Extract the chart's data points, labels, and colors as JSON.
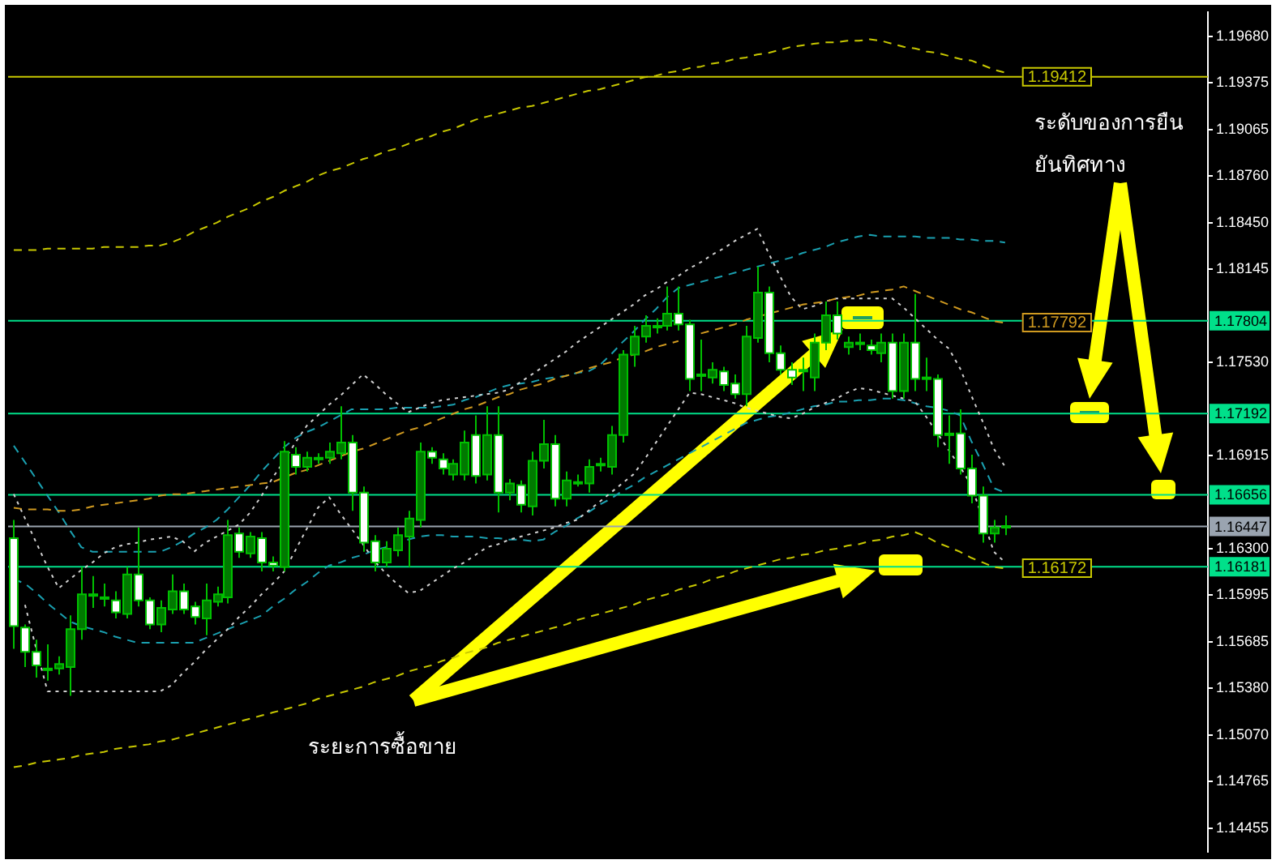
{
  "chart_data": {
    "type": "candlestick",
    "categories": [
      null,
      null,
      null,
      null,
      null,
      null,
      null,
      null,
      null,
      null,
      null,
      null,
      null,
      null,
      null,
      null,
      null,
      null,
      null,
      null,
      null,
      null,
      null,
      null,
      null,
      null,
      null,
      null,
      null,
      null,
      null,
      null,
      null,
      null,
      null,
      null,
      null,
      null,
      null,
      null,
      null,
      null,
      null,
      null,
      null,
      null,
      null,
      null,
      null,
      null,
      null,
      null,
      null,
      null,
      null,
      null,
      null,
      null,
      null,
      null,
      null,
      null,
      null,
      null,
      null,
      null,
      null,
      null,
      null,
      null,
      null,
      null,
      null,
      null,
      null,
      null,
      null,
      null,
      null,
      null,
      null,
      null,
      null,
      null,
      null,
      null,
      null,
      null,
      null
    ],
    "ohlc": [
      [
        1.1637,
        1.1649,
        1.1564,
        1.1579
      ],
      [
        1.1578,
        1.158,
        1.1552,
        1.1562
      ],
      [
        1.1562,
        1.157,
        1.1545,
        1.1553
      ],
      [
        1.1551,
        1.1567,
        1.1543,
        1.1551
      ],
      [
        1.1551,
        1.1559,
        1.1547,
        1.1554
      ],
      [
        1.1552,
        1.1586,
        1.1533,
        1.1577
      ],
      [
        1.1577,
        1.1618,
        1.157,
        1.16
      ],
      [
        1.16,
        1.1612,
        1.1591,
        1.16
      ],
      [
        1.1598,
        1.1607,
        1.1592,
        1.1597
      ],
      [
        1.1596,
        1.1602,
        1.1584,
        1.1588
      ],
      [
        1.1587,
        1.1618,
        1.1584,
        1.1613
      ],
      [
        1.1613,
        1.1644,
        1.1592,
        1.1596
      ],
      [
        1.1596,
        1.1598,
        1.1577,
        1.158
      ],
      [
        1.158,
        1.1596,
        1.1575,
        1.1591
      ],
      [
        1.159,
        1.1613,
        1.1587,
        1.1602
      ],
      [
        1.1602,
        1.1607,
        1.1587,
        1.159
      ],
      [
        1.1592,
        1.1595,
        1.158,
        1.1585
      ],
      [
        1.1584,
        1.1607,
        1.1573,
        1.1596
      ],
      [
        1.1595,
        1.1605,
        1.1592,
        1.16
      ],
      [
        1.1598,
        1.1649,
        1.1594,
        1.1639
      ],
      [
        1.164,
        1.1644,
        1.1624,
        1.1628
      ],
      [
        1.1627,
        1.1641,
        1.1624,
        1.1638
      ],
      [
        1.1637,
        1.1641,
        1.1615,
        1.1621
      ],
      [
        1.1621,
        1.1625,
        1.1615,
        1.1619
      ],
      [
        1.1618,
        1.1701,
        1.1615,
        1.1694
      ],
      [
        1.1692,
        1.1697,
        1.1679,
        1.1684
      ],
      [
        1.1684,
        1.1694,
        1.1681,
        1.169
      ],
      [
        1.169,
        1.1693,
        1.1686,
        1.169
      ],
      [
        1.169,
        1.17,
        1.1686,
        1.1694
      ],
      [
        1.1693,
        1.1724,
        1.1689,
        1.17
      ],
      [
        1.17,
        1.1705,
        1.1655,
        1.1667
      ],
      [
        1.1667,
        1.1671,
        1.1628,
        1.1634
      ],
      [
        1.1635,
        1.1639,
        1.1615,
        1.1621
      ],
      [
        1.1621,
        1.1635,
        1.1618,
        1.163
      ],
      [
        1.1629,
        1.1644,
        1.1625,
        1.1639
      ],
      [
        1.1638,
        1.1655,
        1.1618,
        1.165
      ],
      [
        1.1649,
        1.17,
        1.1644,
        1.1694
      ],
      [
        1.1694,
        1.1697,
        1.1686,
        1.169
      ],
      [
        1.1689,
        1.1693,
        1.1679,
        1.1683
      ],
      [
        1.1679,
        1.1689,
        1.1675,
        1.1686
      ],
      [
        1.1679,
        1.1708,
        1.1675,
        1.17
      ],
      [
        1.1705,
        1.1718,
        1.1673,
        1.1678
      ],
      [
        1.1679,
        1.1724,
        1.1675,
        1.1705
      ],
      [
        1.1705,
        1.1724,
        1.1654,
        1.1667
      ],
      [
        1.1667,
        1.1676,
        1.1662,
        1.1673
      ],
      [
        1.1672,
        1.1675,
        1.1654,
        1.1659
      ],
      [
        1.1658,
        1.1694,
        1.1652,
        1.1688
      ],
      [
        1.1688,
        1.1715,
        1.1683,
        1.1699
      ],
      [
        1.1699,
        1.1705,
        1.1658,
        1.1663
      ],
      [
        1.1663,
        1.1681,
        1.1658,
        1.1675
      ],
      [
        1.1674,
        1.1679,
        1.1671,
        1.1674
      ],
      [
        1.1673,
        1.1689,
        1.1667,
        1.1684
      ],
      [
        1.1686,
        1.169,
        1.1681,
        1.1686
      ],
      [
        1.1684,
        1.1711,
        1.1679,
        1.1705
      ],
      [
        1.1705,
        1.1761,
        1.17,
        1.1758
      ],
      [
        1.1758,
        1.1777,
        1.175,
        1.177
      ],
      [
        1.177,
        1.1784,
        1.1766,
        1.1777
      ],
      [
        1.1777,
        1.1782,
        1.1772,
        1.1777
      ],
      [
        1.1777,
        1.1803,
        1.1774,
        1.1785
      ],
      [
        1.1785,
        1.1803,
        1.1774,
        1.1778
      ],
      [
        1.1778,
        1.1781,
        1.1734,
        1.1742
      ],
      [
        1.1745,
        1.1768,
        1.1734,
        1.1745
      ],
      [
        1.1743,
        1.1753,
        1.1739,
        1.1748
      ],
      [
        1.1747,
        1.175,
        1.1734,
        1.1738
      ],
      [
        1.1739,
        1.1745,
        1.1729,
        1.1732
      ],
      [
        1.1732,
        1.1777,
        1.1724,
        1.177
      ],
      [
        1.1769,
        1.1816,
        1.1766,
        1.1799
      ],
      [
        1.1799,
        1.1803,
        1.1753,
        1.1759
      ],
      [
        1.1759,
        1.1764,
        1.1745,
        1.1748
      ],
      [
        1.1748,
        1.1753,
        1.1738,
        1.1743
      ],
      [
        1.1748,
        1.1756,
        1.1734,
        1.1748
      ],
      [
        1.1743,
        1.1772,
        1.1734,
        1.1766
      ],
      [
        1.1766,
        1.1793,
        1.1761,
        1.1784
      ],
      [
        1.1784,
        1.1793,
        1.1768,
        1.1772
      ],
      [
        1.1763,
        1.177,
        1.1758,
        1.1766
      ],
      [
        1.1766,
        1.1772,
        1.1761,
        1.1766
      ],
      [
        1.1764,
        1.1768,
        1.1758,
        1.1761
      ],
      [
        1.1759,
        1.1772,
        1.1753,
        1.1766
      ],
      [
        1.1766,
        1.1772,
        1.1729,
        1.1734
      ],
      [
        1.1734,
        1.1772,
        1.1729,
        1.1766
      ],
      [
        1.1766,
        1.1798,
        1.1734,
        1.1742
      ],
      [
        1.1743,
        1.1756,
        1.1734,
        1.1743
      ],
      [
        1.1742,
        1.1745,
        1.1697,
        1.1705
      ],
      [
        1.1706,
        1.1718,
        1.1686,
        1.1706
      ],
      [
        1.1706,
        1.1722,
        1.1679,
        1.1683
      ],
      [
        1.1683,
        1.1692,
        1.166,
        1.1665
      ],
      [
        1.1665,
        1.1671,
        1.1634,
        1.164
      ],
      [
        1.164,
        1.1649,
        1.1634,
        1.1644
      ],
      [
        1.1645,
        1.1652,
        1.1639,
        1.1645
      ]
    ],
    "series": [
      {
        "type": "line",
        "color": "#c8c800",
        "line_style": "dashed",
        "values": [
          1.1827,
          1.1827,
          1.1827,
          1.1828,
          1.1828,
          1.1828,
          1.1828,
          1.1828,
          1.1829,
          1.1829,
          1.1829,
          1.1829,
          1.183,
          1.183,
          1.1832,
          1.1835,
          1.1839,
          1.1842,
          1.1845,
          1.1849,
          1.1852,
          1.1855,
          1.1859,
          1.1862,
          1.1866,
          1.1869,
          1.1872,
          1.1876,
          1.1879,
          1.1881,
          1.1884,
          1.1887,
          1.1889,
          1.1892,
          1.1894,
          1.1897,
          1.19,
          1.1902,
          1.1905,
          1.1907,
          1.191,
          1.1913,
          1.1915,
          1.1917,
          1.1919,
          1.1921,
          1.1922,
          1.1924,
          1.1926,
          1.1928,
          1.193,
          1.1932,
          1.1933,
          1.1935,
          1.1937,
          1.1939,
          1.1941,
          1.1942,
          1.1944,
          1.1945,
          1.1947,
          1.1948,
          1.195,
          1.1951,
          1.1953,
          1.1954,
          1.1956,
          1.1957,
          1.1959,
          1.1961,
          1.1962,
          1.1963,
          1.1964,
          1.1964,
          1.1965,
          1.1965,
          1.1966,
          1.1965,
          1.1963,
          1.1961,
          1.196,
          1.1958,
          1.1957,
          1.1955,
          1.1953,
          1.1952,
          1.1949,
          1.1946,
          1.1944
        ]
      },
      {
        "type": "line",
        "color": "#c8c800",
        "line_style": "dashed",
        "values": [
          1.1486,
          1.1487,
          1.1489,
          1.149,
          1.1491,
          1.1492,
          1.1494,
          1.1495,
          1.1496,
          1.1498,
          1.1499,
          1.15,
          1.1501,
          1.1503,
          1.1504,
          1.1506,
          1.1508,
          1.151,
          1.1512,
          1.1514,
          1.1516,
          1.1518,
          1.152,
          1.1522,
          1.1524,
          1.1526,
          1.1528,
          1.1531,
          1.1533,
          1.1535,
          1.1537,
          1.1539,
          1.1542,
          1.1544,
          1.1546,
          1.1549,
          1.1551,
          1.1553,
          1.1556,
          1.1558,
          1.1561,
          1.1563,
          1.1565,
          1.1568,
          1.157,
          1.1572,
          1.1574,
          1.1576,
          1.1578,
          1.158,
          1.1583,
          1.1585,
          1.1587,
          1.1589,
          1.1591,
          1.1593,
          1.1596,
          1.1598,
          1.16,
          1.1603,
          1.1605,
          1.1607,
          1.161,
          1.1612,
          1.1615,
          1.1617,
          1.1619,
          1.1621,
          1.1623,
          1.1624,
          1.1626,
          1.1627,
          1.1629,
          1.163,
          1.1632,
          1.1633,
          1.1635,
          1.1636,
          1.1638,
          1.1639,
          1.1641,
          1.1638,
          1.1634,
          1.1631,
          1.1628,
          1.1624,
          1.1621,
          1.1618,
          1.1617
        ]
      },
      {
        "type": "line",
        "color": "#d09a20",
        "line_style": "dashed",
        "values": [
          1.1657,
          1.1656,
          1.1656,
          1.1656,
          1.1655,
          1.1655,
          1.1656,
          1.1658,
          1.1659,
          1.166,
          1.1661,
          1.1662,
          1.1663,
          1.1665,
          1.1666,
          1.1666,
          1.1667,
          1.1668,
          1.1669,
          1.167,
          1.1671,
          1.1672,
          1.1673,
          1.1674,
          1.1677,
          1.168,
          1.1682,
          1.1685,
          1.1688,
          1.1691,
          1.1694,
          1.1696,
          1.1699,
          1.1702,
          1.1705,
          1.1708,
          1.171,
          1.1713,
          1.1716,
          1.1719,
          1.1722,
          1.1724,
          1.1727,
          1.173,
          1.1732,
          1.1735,
          1.1737,
          1.1739,
          1.1742,
          1.1744,
          1.1746,
          1.1749,
          1.1751,
          1.1753,
          1.1756,
          1.1758,
          1.176,
          1.1763,
          1.1765,
          1.1767,
          null,
          1.1772,
          1.1774,
          1.1776,
          1.1778,
          1.1781,
          1.1783,
          1.1785,
          1.1787,
          1.1789,
          1.1791,
          1.1792,
          1.1793,
          1.1795,
          1.1796,
          1.1797,
          1.1799,
          1.18,
          1.1801,
          1.1803,
          1.18,
          1.1797,
          1.1794,
          1.1791,
          1.1788,
          1.1786,
          1.1783,
          1.178,
          1.1779
        ]
      },
      {
        "type": "line",
        "color": "#d0d0d0",
        "line_style": "dotted",
        "values": [
          1.1666,
          1.165,
          1.1634,
          1.1618,
          1.1604,
          1.161,
          1.1616,
          1.1621,
          1.1627,
          1.1631,
          1.1633,
          1.1634,
          1.1636,
          1.1637,
          1.1638,
          1.1635,
          1.1628,
          1.1634,
          1.1638,
          1.1642,
          1.1646,
          1.1654,
          1.1665,
          1.1677,
          1.1688,
          1.17,
          1.1711,
          1.1718,
          1.1725,
          1.1731,
          1.1738,
          1.1745,
          1.1739,
          1.1732,
          1.1726,
          1.172,
          1.1723,
          1.1726,
          1.1728,
          1.1729,
          1.173,
          1.1731,
          1.1732,
          1.1733,
          1.1735,
          1.174,
          1.1745,
          1.175,
          1.1755,
          1.176,
          1.1766,
          1.1771,
          1.1776,
          1.1781,
          1.1786,
          1.1791,
          1.1797,
          1.1801,
          1.1806,
          1.181,
          1.1815,
          1.1819,
          1.1824,
          1.1828,
          1.1833,
          1.1837,
          1.1841,
          1.1825,
          1.181,
          1.1796,
          1.1788,
          1.179,
          1.1793,
          1.1795,
          1.1795,
          1.1795,
          1.1795,
          1.1795,
          1.1795,
          1.1789,
          1.1782,
          1.1775,
          1.1768,
          1.1762,
          1.1749,
          1.1731,
          1.1714,
          1.1696,
          1.1684
        ]
      },
      {
        "type": "line",
        "color": "#d0d0d0",
        "line_style": "dotted",
        "values": [
          null,
          1.1593,
          1.1564,
          1.1536,
          1.1536,
          1.1536,
          1.1536,
          1.1536,
          1.1536,
          1.1536,
          1.1536,
          1.1536,
          1.1536,
          1.1536,
          1.154,
          1.1548,
          1.1555,
          1.1563,
          1.157,
          1.1577,
          1.1585,
          1.1592,
          1.16,
          1.1607,
          1.1615,
          1.1629,
          1.1643,
          1.1657,
          1.1664,
          1.1653,
          1.1643,
          1.1633,
          1.1622,
          1.1614,
          1.1607,
          1.1601,
          1.1602,
          1.1607,
          1.1612,
          1.1617,
          1.1621,
          1.1626,
          1.1631,
          1.1633,
          1.1636,
          1.1638,
          1.164,
          1.1642,
          1.1644,
          1.1647,
          1.1649,
          1.1655,
          1.1661,
          1.1667,
          1.1673,
          1.1679,
          1.1689,
          1.17,
          1.1711,
          1.1722,
          1.1733,
          1.1732,
          1.173,
          1.1728,
          1.1726,
          1.1723,
          1.1721,
          1.1719,
          1.1717,
          1.1716,
          1.1719,
          1.1723,
          1.1726,
          1.1729,
          1.1733,
          1.1736,
          1.1735,
          1.1733,
          1.1731,
          1.1729,
          1.1727,
          1.1717,
          1.1706,
          1.1695,
          1.1684,
          1.1672,
          1.165,
          1.1628,
          1.1621
        ]
      },
      {
        "type": "line",
        "color": "#1aa0b0",
        "line_style": "dashed",
        "values": [
          1.1698,
          1.1687,
          1.1676,
          1.1665,
          1.1654,
          1.1642,
          1.1631,
          1.1628,
          1.1628,
          1.1628,
          1.1628,
          1.1628,
          1.1628,
          1.1628,
          1.1631,
          1.1635,
          1.164,
          1.1644,
          1.1649,
          1.1656,
          1.1664,
          1.1672,
          1.1681,
          1.1689,
          1.1697,
          1.1703,
          1.1707,
          1.171,
          1.1714,
          1.1718,
          1.1722,
          1.1722,
          1.1722,
          1.1722,
          1.1723,
          1.1723,
          1.1723,
          1.1723,
          1.1724,
          1.1725,
          1.1728,
          1.173,
          1.1733,
          1.1736,
          1.1738,
          1.1739,
          1.174,
          1.1742,
          1.1743,
          1.1744,
          1.1746,
          1.1747,
          1.1751,
          1.1758,
          1.1766,
          1.1773,
          1.1781,
          1.1788,
          1.1796,
          1.1802,
          1.1804,
          1.1806,
          1.1808,
          1.181,
          1.1812,
          1.1814,
          1.1816,
          1.1818,
          1.182,
          1.1822,
          1.1825,
          1.1827,
          1.1829,
          1.1832,
          1.1834,
          1.1836,
          1.1837,
          1.1836,
          1.1836,
          1.1836,
          1.1836,
          1.1835,
          1.1835,
          1.1835,
          1.1834,
          1.1834,
          1.1833,
          1.1833,
          1.1832
        ]
      },
      {
        "type": "line",
        "color": "#1aa0b0",
        "line_style": "dashed",
        "values": [
          1.161,
          1.1607,
          1.1601,
          1.1594,
          1.1588,
          1.1582,
          1.1579,
          1.1577,
          1.1575,
          1.1572,
          1.157,
          1.1568,
          1.1568,
          1.1568,
          1.1568,
          1.1568,
          1.1568,
          1.1571,
          1.1574,
          1.1577,
          1.158,
          1.1583,
          1.1586,
          1.1592,
          1.1597,
          1.1603,
          1.1608,
          1.1614,
          1.1619,
          1.1621,
          1.1624,
          1.1626,
          1.1629,
          1.1631,
          1.1634,
          1.1636,
          1.1638,
          1.1639,
          1.1639,
          1.1638,
          1.1638,
          1.1638,
          1.1637,
          1.1637,
          1.1636,
          1.1636,
          1.1635,
          1.1636,
          1.1641,
          1.1645,
          1.165,
          1.1654,
          1.1659,
          1.1663,
          1.1668,
          1.1672,
          1.1677,
          1.1681,
          1.1685,
          1.1689,
          1.1693,
          1.1697,
          1.1701,
          1.1705,
          1.1709,
          1.1713,
          1.1715,
          1.1717,
          1.1718,
          1.172,
          1.1722,
          1.1724,
          1.1725,
          1.1727,
          1.1727,
          1.1728,
          1.1728,
          1.1729,
          1.1729,
          1.1728,
          1.1726,
          1.1724,
          1.1723,
          1.1721,
          1.1718,
          1.1701,
          1.1686,
          1.167,
          1.1667
        ]
      }
    ],
    "ylim": [
      1.143,
      1.1984
    ],
    "yticks": [
      {
        "value": 1.1968,
        "label": "1.19680"
      },
      {
        "value": 1.19375,
        "label": "1.19375"
      },
      {
        "value": 1.19065,
        "label": "1.19065"
      },
      {
        "value": 1.1876,
        "label": "1.18760"
      },
      {
        "value": 1.1845,
        "label": "1.18450"
      },
      {
        "value": 1.18145,
        "label": "1.18145"
      },
      {
        "value": 1.1753,
        "label": "1.17530"
      },
      {
        "value": 1.16915,
        "label": "1.16915"
      },
      {
        "value": 1.163,
        "label": "1.16300"
      },
      {
        "value": 1.15995,
        "label": "1.15995"
      },
      {
        "value": 1.15685,
        "label": "1.15685"
      },
      {
        "value": 1.1538,
        "label": "1.15380"
      },
      {
        "value": 1.1507,
        "label": "1.15070"
      },
      {
        "value": 1.14765,
        "label": "1.14765"
      },
      {
        "value": 1.14455,
        "label": "1.14455"
      }
    ],
    "tick_labels": "y",
    "grid": false,
    "legend": false,
    "ref_lines": [
      {
        "axis": "y",
        "value": 1.19412,
        "color": "#c8c800"
      },
      {
        "axis": "y",
        "value": 1.17804,
        "label": "1.17804",
        "color": "#00e08a"
      },
      {
        "axis": "y",
        "value": 1.17192,
        "label": "1.17192",
        "color": "#00e08a"
      },
      {
        "axis": "y",
        "value": 1.16656,
        "label": "1.16656",
        "color": "#00e08a"
      },
      {
        "axis": "y",
        "value": 1.16447,
        "label": "1.16447",
        "color": "#9aa4b0"
      },
      {
        "axis": "y",
        "value": 1.16181,
        "label": "1.16181",
        "color": "#00e08a"
      }
    ],
    "annotations": [
      {
        "text": "1.19412",
        "y": 1.19412
      },
      {
        "text": "1.17792",
        "y": 1.17792
      },
      {
        "text": "1.16172",
        "y": 1.16172
      },
      "ระดับของการยืน\nยันทิศทาง",
      "ระยะการซื้อขาย"
    ]
  }
}
